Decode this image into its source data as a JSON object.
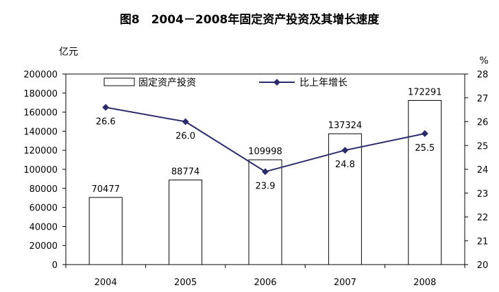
{
  "chart_data": {
    "type": "bar",
    "title": "图8　2004－2008年固定资产投资及其增长速度",
    "categories": [
      "2004",
      "2005",
      "2006",
      "2007",
      "2008"
    ],
    "y_left_unit": "亿元",
    "y_right_unit": "%",
    "y_left_range": [
      0,
      200000
    ],
    "y_left_ticks": [
      "0",
      "20000",
      "40000",
      "60000",
      "80000",
      "100000",
      "120000",
      "140000",
      "160000",
      "180000",
      "200000"
    ],
    "y_right_range": [
      20,
      28
    ],
    "y_right_ticks": [
      "20",
      "21",
      "22",
      "23",
      "24",
      "25",
      "26",
      "27",
      "28"
    ],
    "grid": false,
    "legend_position": "top-left",
    "series": [
      {
        "name": "固定资产投资",
        "type": "bar",
        "axis": "left",
        "values": [
          70477,
          88774,
          109998,
          137324,
          172291
        ],
        "labels": [
          "70477",
          "88774",
          "109998",
          "137324",
          "172291"
        ],
        "color": "#ffffff"
      },
      {
        "name": "比上年增长",
        "type": "line",
        "axis": "right",
        "values": [
          26.6,
          26.0,
          23.9,
          24.8,
          25.5
        ],
        "labels": [
          "26.6",
          "26.0",
          "23.9",
          "24.8",
          "25.5"
        ],
        "color": "#2b2b6b"
      }
    ]
  }
}
